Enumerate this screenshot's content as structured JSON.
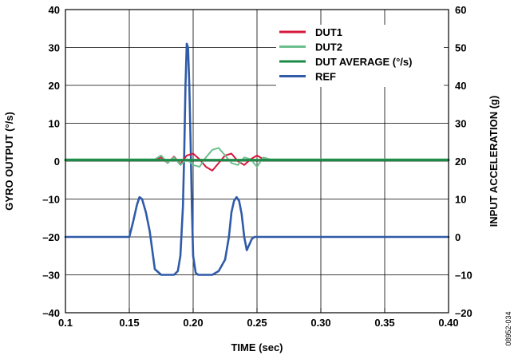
{
  "chart_data": {
    "type": "line",
    "xlabel": "TIME (sec)",
    "ylabel": "GYRO OUTPUT (°/s)",
    "y2label": "INPUT ACCELERATION (g)",
    "figure_id": "08952-034",
    "xlim": [
      0.1,
      0.4
    ],
    "ylim": [
      -40,
      40
    ],
    "y2lim": [
      -20,
      60
    ],
    "x_ticks": [
      "0.1",
      "0.15",
      "0.20",
      "0.25",
      "0.30",
      "0.35",
      "0.40"
    ],
    "y_ticks": [
      "40",
      "30",
      "20",
      "10",
      "0",
      "–10",
      "–20",
      "–30",
      "–40"
    ],
    "y2_ticks": [
      "60",
      "50",
      "40",
      "30",
      "20",
      "10",
      "0",
      "–10",
      "–20"
    ],
    "grid": true,
    "legend_position": "top-right",
    "colors": {
      "DUT1": "#d6173b",
      "DUT2": "#6dbf8e",
      "DUT AVERAGE (°/s)": "#1a8a46",
      "REF": "#2f5ba8"
    },
    "series": [
      {
        "name": "DUT1",
        "axis": "left",
        "x": [
          0.1,
          0.17,
          0.175,
          0.18,
          0.185,
          0.19,
          0.195,
          0.2,
          0.205,
          0.21,
          0.215,
          0.22,
          0.225,
          0.23,
          0.235,
          0.24,
          0.245,
          0.25,
          0.255,
          0.26,
          0.4
        ],
        "y": [
          0.3,
          0.3,
          1.0,
          -0.5,
          1.2,
          -0.8,
          1.5,
          2.0,
          0.5,
          -1.5,
          -2.5,
          -0.5,
          1.5,
          2.0,
          0.0,
          -1.0,
          0.5,
          1.5,
          0.5,
          0.3,
          0.3
        ]
      },
      {
        "name": "DUT2",
        "axis": "left",
        "x": [
          0.1,
          0.17,
          0.175,
          0.18,
          0.185,
          0.19,
          0.195,
          0.2,
          0.205,
          0.21,
          0.215,
          0.22,
          0.225,
          0.23,
          0.235,
          0.24,
          0.245,
          0.25,
          0.255,
          0.26,
          0.4
        ],
        "y": [
          0.5,
          0.5,
          1.5,
          -0.5,
          1.0,
          -1.0,
          0.5,
          -1.0,
          -1.5,
          1.0,
          3.0,
          3.5,
          1.5,
          -0.5,
          -1.0,
          1.0,
          0.5,
          -1.5,
          1.0,
          0.5,
          0.5
        ]
      },
      {
        "name": "DUT AVERAGE (°/s)",
        "axis": "left",
        "x": [
          0.1,
          0.4
        ],
        "y": [
          0.3,
          0.3
        ]
      },
      {
        "name": "REF",
        "axis": "right",
        "x": [
          0.1,
          0.15,
          0.153,
          0.156,
          0.158,
          0.16,
          0.163,
          0.166,
          0.168,
          0.17,
          0.175,
          0.18,
          0.185,
          0.188,
          0.19,
          0.192,
          0.193,
          0.194,
          0.195,
          0.196,
          0.197,
          0.198,
          0.199,
          0.2,
          0.202,
          0.204,
          0.21,
          0.215,
          0.22,
          0.225,
          0.228,
          0.23,
          0.232,
          0.234,
          0.236,
          0.238,
          0.24,
          0.242,
          0.244,
          0.246,
          0.248,
          0.25,
          0.4
        ],
        "y": [
          0,
          0,
          4,
          8.5,
          10.5,
          10,
          6.5,
          1.5,
          -3.5,
          -8.5,
          -10,
          -10,
          -10,
          -9,
          -5,
          8,
          22,
          40,
          51,
          50,
          40,
          25,
          8,
          -5,
          -9.5,
          -10,
          -10,
          -10,
          -9,
          -6,
          0,
          6.5,
          9.5,
          10.5,
          9.5,
          6,
          0,
          -3.5,
          -2,
          -0.5,
          0,
          0,
          0
        ]
      }
    ]
  }
}
